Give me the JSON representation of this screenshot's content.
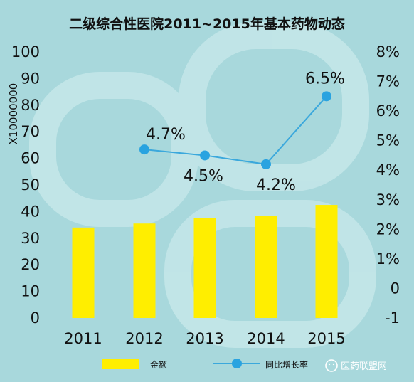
{
  "chart_data": {
    "type": "bar",
    "title": "二级综合性医院2011~2015年基本药物动态",
    "categories": [
      "2011",
      "2012",
      "2013",
      "2014",
      "2015"
    ],
    "series": [
      {
        "name": "金额",
        "type": "bar",
        "axis": "left",
        "values": [
          34,
          35.5,
          37.5,
          38.5,
          42.5
        ]
      },
      {
        "name": "同比增长率",
        "type": "line",
        "axis": "right",
        "values": [
          null,
          4.7,
          4.5,
          4.2,
          6.5
        ],
        "labels": [
          "",
          "4.7%",
          "4.5%",
          "4.2%",
          "6.5%"
        ]
      }
    ],
    "ylabel": "X10000000",
    "ylim": [
      0,
      100
    ],
    "y_ticks": [
      "0",
      "10",
      "20",
      "30",
      "40",
      "50",
      "60",
      "70",
      "80",
      "90",
      "100"
    ],
    "y2lim": [
      -1,
      8
    ],
    "y2_ticks": [
      "-1",
      "0",
      "1%",
      "2%",
      "3%",
      "4%",
      "5%",
      "6%",
      "7%",
      "8%"
    ],
    "grid": false,
    "legend": "bottom",
    "colors": {
      "bar": "#ffee00",
      "line": "#3ba8dc",
      "marker": "#29a3e0",
      "background": "#a8d8dc"
    }
  },
  "watermark": "医药联盟网"
}
